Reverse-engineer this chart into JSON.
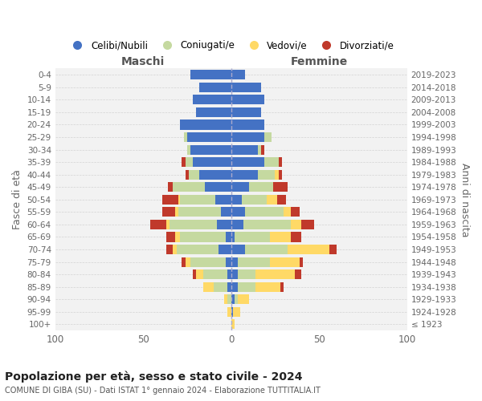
{
  "age_groups": [
    "100+",
    "95-99",
    "90-94",
    "85-89",
    "80-84",
    "75-79",
    "70-74",
    "65-69",
    "60-64",
    "55-59",
    "50-54",
    "45-49",
    "40-44",
    "35-39",
    "30-34",
    "25-29",
    "20-24",
    "15-19",
    "10-14",
    "5-9",
    "0-4"
  ],
  "birth_years": [
    "≤ 1923",
    "1924-1928",
    "1929-1933",
    "1934-1938",
    "1939-1943",
    "1944-1948",
    "1949-1953",
    "1954-1958",
    "1959-1963",
    "1964-1968",
    "1969-1973",
    "1974-1978",
    "1979-1983",
    "1984-1988",
    "1989-1993",
    "1994-1998",
    "1999-2003",
    "2004-2008",
    "2009-2013",
    "2014-2018",
    "2019-2023"
  ],
  "male_celibi": [
    0,
    0,
    0,
    2,
    2,
    3,
    7,
    3,
    8,
    6,
    9,
    15,
    18,
    22,
    23,
    25,
    29,
    20,
    22,
    18,
    23
  ],
  "male_coniugati": [
    0,
    0,
    2,
    8,
    14,
    20,
    24,
    26,
    27,
    24,
    20,
    18,
    6,
    4,
    2,
    2,
    0,
    0,
    0,
    0,
    0
  ],
  "male_vedovi": [
    0,
    2,
    2,
    6,
    4,
    3,
    2,
    3,
    2,
    2,
    1,
    0,
    0,
    0,
    0,
    0,
    0,
    0,
    0,
    0,
    0
  ],
  "male_divorziati": [
    0,
    0,
    0,
    0,
    2,
    2,
    4,
    5,
    9,
    7,
    9,
    3,
    2,
    2,
    0,
    0,
    0,
    0,
    0,
    0,
    0
  ],
  "female_celibi": [
    0,
    1,
    2,
    4,
    4,
    4,
    8,
    2,
    7,
    8,
    6,
    10,
    15,
    19,
    15,
    19,
    19,
    17,
    19,
    17,
    8
  ],
  "female_coniugati": [
    0,
    0,
    2,
    10,
    10,
    18,
    24,
    20,
    27,
    22,
    14,
    14,
    10,
    8,
    2,
    4,
    0,
    0,
    0,
    0,
    0
  ],
  "female_vedovi": [
    2,
    4,
    6,
    14,
    22,
    17,
    24,
    12,
    6,
    4,
    6,
    0,
    2,
    0,
    0,
    0,
    0,
    0,
    0,
    0,
    0
  ],
  "female_divorziati": [
    0,
    0,
    0,
    2,
    4,
    2,
    4,
    6,
    7,
    5,
    5,
    8,
    2,
    2,
    2,
    0,
    0,
    0,
    0,
    0,
    0
  ],
  "colors": {
    "celibi": "#4472c4",
    "coniugati": "#c5d9a0",
    "vedovi": "#ffd966",
    "divorziati": "#c0392b"
  },
  "xlim": 100,
  "title": "Popolazione per età, sesso e stato civile - 2024",
  "subtitle": "COMUNE DI GIBA (SU) - Dati ISTAT 1° gennaio 2024 - Elaborazione TUTTITALIA.IT",
  "xlabel_left": "Maschi",
  "xlabel_right": "Femmine",
  "ylabel": "Fasce di età",
  "ylabel_right": "Anni di nascita",
  "legend_labels": [
    "Celibi/Nubili",
    "Coniugati/e",
    "Vedovi/e",
    "Divorziati/e"
  ],
  "background_color": "#ffffff",
  "grid_color": "#cccccc"
}
